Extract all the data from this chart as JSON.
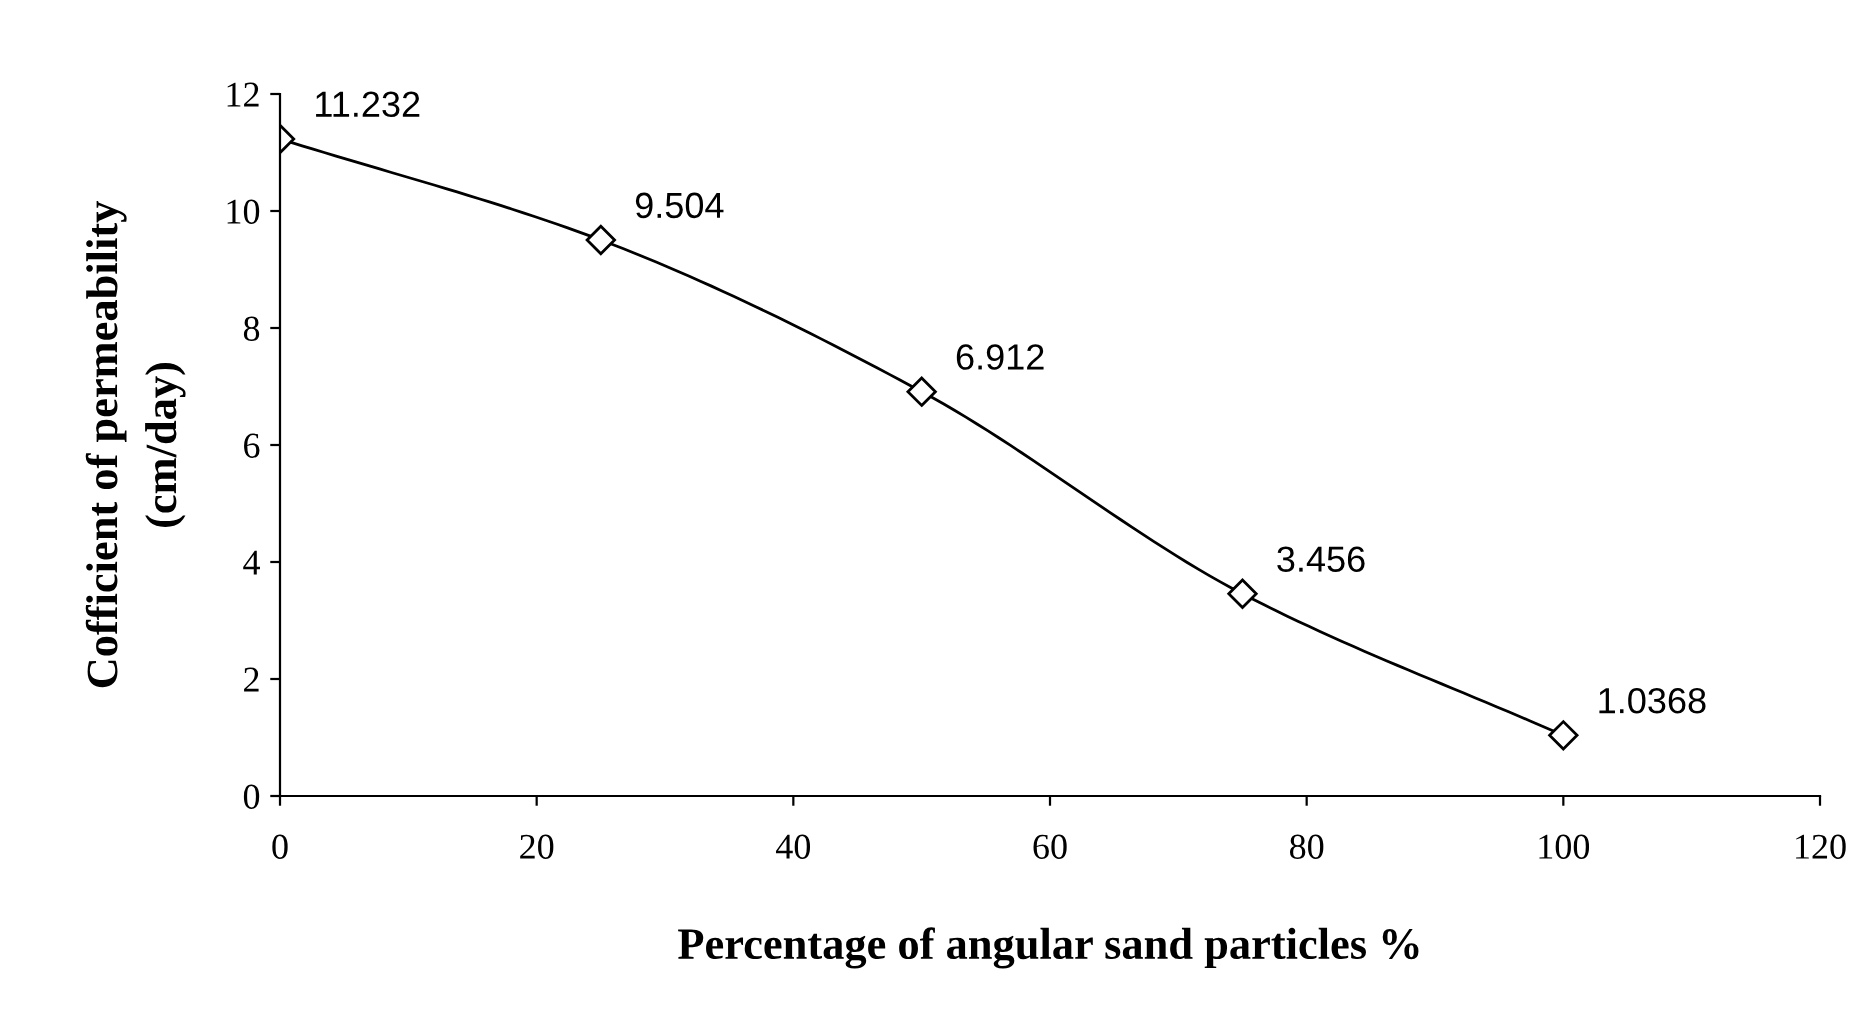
{
  "chart_data": {
    "type": "line",
    "xlabel": "Percentage of angular sand particles %",
    "ylabel": "Cofficient of permeability\n(cm/day)",
    "x": [
      0,
      25,
      50,
      75,
      100
    ],
    "series": [
      {
        "color": "#000000",
        "values": [
          11.232,
          9.504,
          6.912,
          3.456,
          1.0368
        ]
      }
    ],
    "xlim": [
      0,
      120
    ],
    "xticks": [
      0,
      20,
      40,
      60,
      80,
      100,
      120
    ],
    "ylim": [
      0,
      12
    ],
    "yticks": [
      0,
      2,
      4,
      6,
      8,
      10,
      12
    ],
    "marker": "diamond",
    "line_style": "solid",
    "data_labels": true
  }
}
